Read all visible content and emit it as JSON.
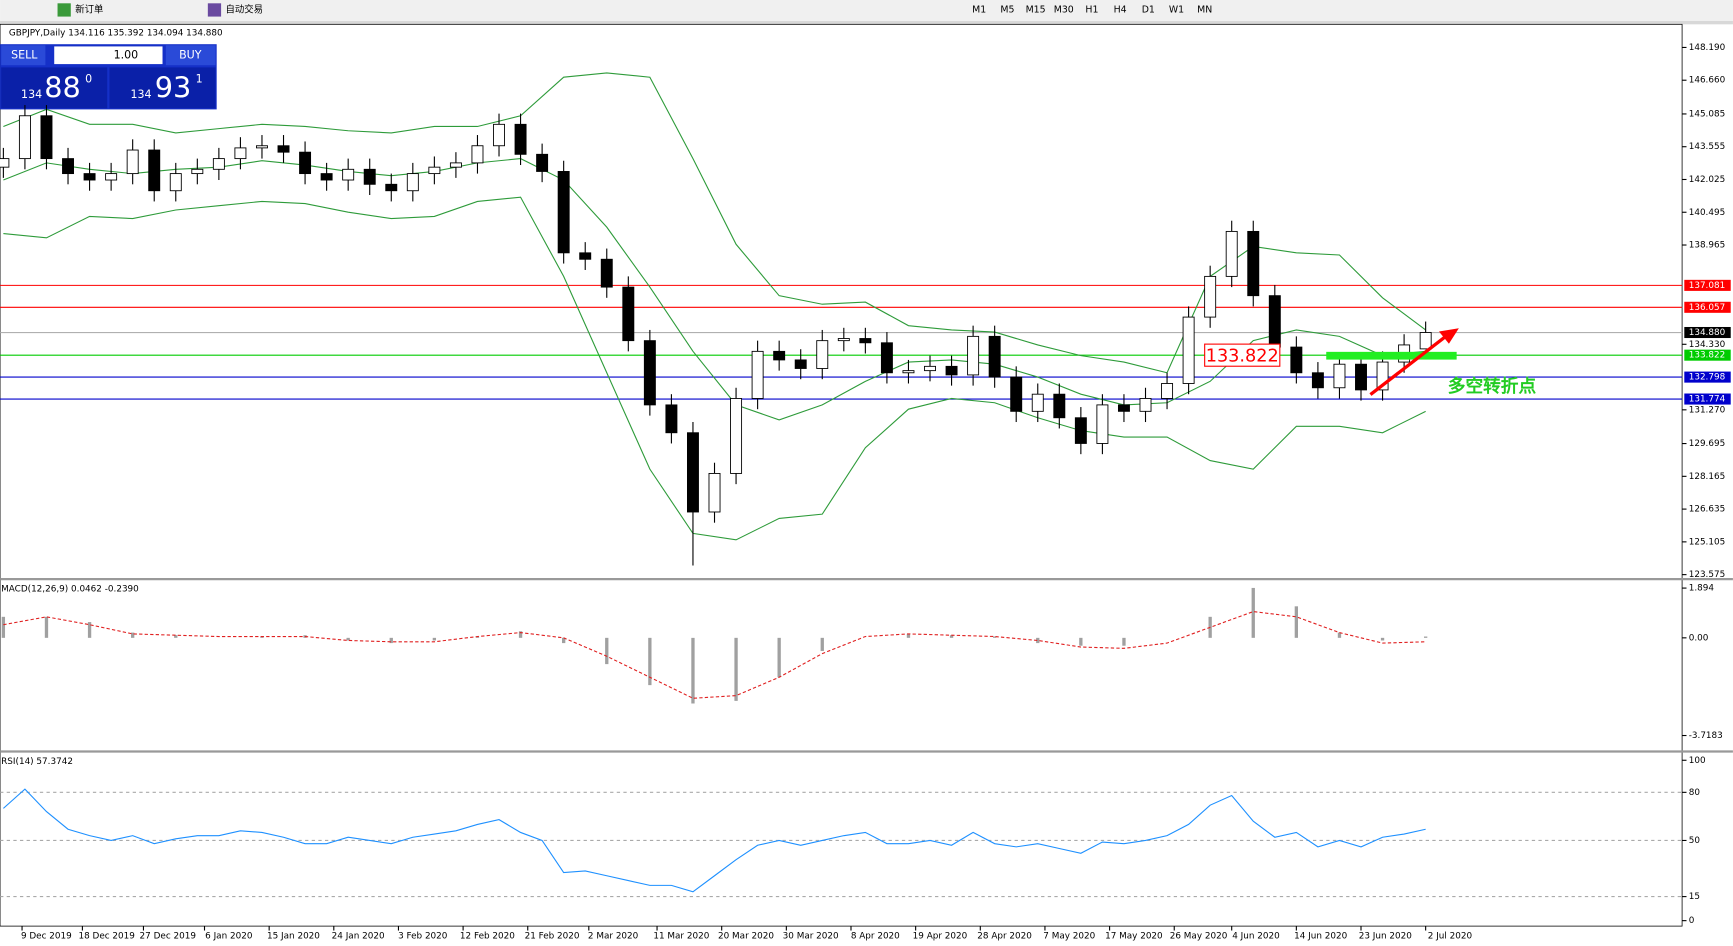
{
  "toolbar": {
    "buttons": [
      "新订单",
      "自动交易"
    ],
    "timeframes": [
      "M1",
      "M5",
      "M15",
      "M30",
      "H1",
      "H4",
      "D1",
      "W1",
      "MN"
    ]
  },
  "trade_panel": {
    "sell": "SELL",
    "buy": "BUY",
    "lot": "1.00",
    "sell_price": {
      "prefix": "134",
      "big": "88",
      "small": "0"
    },
    "buy_price": {
      "prefix": "134",
      "big": "93",
      "small": "1"
    }
  },
  "chart_data": [
    {
      "type": "candlestick",
      "title": "GBPJPY,Daily  134.116 135.392 134.094 134.880",
      "x": [
        0,
        3,
        6,
        9,
        12,
        15,
        18,
        21,
        24,
        27,
        30,
        33,
        36,
        39,
        42,
        45,
        48,
        51,
        54,
        57,
        60,
        63,
        66,
        69,
        72,
        75,
        78,
        81,
        84,
        87,
        90,
        93,
        96,
        99,
        102,
        105,
        108,
        111,
        114,
        117,
        120,
        123,
        126,
        129,
        132,
        135,
        138,
        141,
        144,
        147,
        150,
        153,
        156,
        159,
        162,
        165,
        168,
        171,
        174,
        177,
        180,
        183,
        186,
        189,
        192,
        195,
        198
      ],
      "open": [
        142.6,
        143.0,
        145.0,
        143.0,
        142.3,
        142.0,
        142.3,
        143.4,
        141.5,
        142.3,
        142.5,
        143.0,
        143.5,
        143.6,
        143.3,
        142.3,
        142.0,
        142.5,
        141.8,
        141.5,
        142.3,
        142.6,
        142.8,
        143.6,
        144.6,
        143.2,
        142.4,
        138.6,
        138.3,
        137.0,
        134.5,
        131.5,
        130.2,
        126.5,
        128.3,
        131.8,
        134.0,
        133.6,
        133.2,
        134.5,
        134.6,
        134.4,
        133.0,
        133.1,
        133.3,
        132.9,
        134.7,
        132.8,
        131.2,
        132.0,
        130.9,
        129.7,
        131.5,
        131.2,
        131.8,
        132.5,
        135.6,
        137.5,
        139.6,
        136.6,
        134.2,
        133.0,
        132.3,
        133.4,
        132.2,
        133.5,
        134.116
      ],
      "high": [
        143.5,
        145.5,
        145.5,
        143.5,
        142.8,
        142.8,
        143.9,
        143.9,
        142.8,
        143.0,
        143.5,
        144.0,
        144.1,
        144.1,
        143.8,
        142.8,
        143.0,
        143.0,
        142.3,
        142.8,
        143.1,
        143.3,
        144.1,
        145.1,
        145.1,
        143.7,
        142.9,
        139.1,
        138.8,
        137.5,
        135.0,
        132.0,
        130.7,
        128.8,
        132.3,
        134.5,
        134.5,
        134.1,
        135.0,
        135.1,
        135.1,
        134.9,
        133.6,
        133.8,
        133.8,
        135.2,
        135.2,
        133.3,
        132.5,
        132.5,
        131.4,
        132.0,
        132.0,
        132.3,
        133.0,
        136.1,
        138.0,
        140.1,
        140.1,
        137.1,
        134.7,
        133.5,
        133.9,
        133.9,
        134.0,
        134.8,
        135.392
      ],
      "low": [
        142.1,
        142.5,
        142.5,
        141.8,
        141.5,
        141.5,
        141.8,
        141.0,
        141.0,
        141.8,
        142.0,
        142.5,
        143.0,
        142.8,
        141.8,
        141.5,
        141.5,
        141.3,
        141.0,
        141.0,
        141.8,
        142.1,
        142.3,
        143.1,
        142.7,
        141.9,
        138.1,
        137.8,
        136.5,
        134.0,
        131.0,
        129.7,
        124.0,
        126.0,
        127.8,
        131.3,
        133.1,
        132.7,
        132.7,
        134.0,
        133.9,
        132.5,
        132.5,
        132.6,
        132.4,
        132.4,
        132.3,
        130.7,
        130.7,
        130.4,
        129.2,
        129.2,
        130.7,
        130.7,
        131.3,
        132.0,
        135.1,
        137.0,
        136.1,
        133.7,
        132.5,
        131.8,
        131.8,
        131.7,
        131.7,
        133.0,
        134.094
      ],
      "close": [
        143.0,
        145.0,
        143.0,
        142.3,
        142.0,
        142.3,
        143.4,
        141.5,
        142.3,
        142.5,
        143.0,
        143.5,
        143.6,
        143.3,
        142.3,
        142.0,
        142.5,
        141.8,
        141.5,
        142.3,
        142.6,
        142.8,
        143.6,
        144.6,
        143.2,
        142.4,
        138.6,
        138.3,
        137.0,
        134.5,
        131.5,
        130.2,
        126.5,
        128.3,
        131.8,
        134.0,
        133.6,
        133.2,
        134.5,
        134.6,
        134.4,
        133.0,
        133.1,
        133.3,
        132.9,
        134.7,
        132.8,
        131.2,
        132.0,
        130.9,
        129.7,
        131.5,
        131.2,
        131.8,
        132.5,
        135.6,
        137.5,
        139.6,
        136.6,
        134.2,
        133.0,
        132.3,
        133.4,
        132.2,
        133.5,
        134.3,
        134.88
      ],
      "series": [
        {
          "name": "upper",
          "color": "#2e9b3a",
          "x": [
            0,
            6,
            12,
            18,
            24,
            30,
            36,
            42,
            48,
            54,
            60,
            66,
            72,
            78,
            84,
            90,
            96,
            102,
            108,
            114,
            120,
            126,
            132,
            138,
            144,
            150,
            156,
            162,
            168,
            174,
            180,
            186,
            192,
            198
          ],
          "values": [
            144.5,
            145.3,
            144.6,
            144.6,
            144.2,
            144.4,
            144.6,
            144.5,
            144.3,
            144.2,
            144.5,
            144.5,
            145.0,
            146.8,
            147.0,
            146.8,
            143.0,
            139.0,
            136.6,
            136.2,
            136.3,
            135.2,
            135.0,
            134.9,
            134.3,
            133.8,
            133.5,
            133.0,
            137.5,
            138.9,
            138.6,
            138.5,
            136.5,
            135.0
          ]
        },
        {
          "name": "middle",
          "color": "#2e9b3a",
          "x": [
            0,
            6,
            12,
            18,
            24,
            30,
            36,
            42,
            48,
            54,
            60,
            66,
            72,
            78,
            84,
            90,
            96,
            102,
            108,
            114,
            120,
            126,
            132,
            138,
            144,
            150,
            156,
            162,
            168,
            174,
            180,
            186,
            192,
            198
          ],
          "values": [
            142.0,
            142.8,
            142.5,
            142.3,
            142.5,
            142.6,
            142.9,
            142.7,
            142.4,
            142.2,
            142.4,
            142.8,
            143.0,
            142.0,
            139.8,
            137.0,
            134.0,
            131.5,
            130.8,
            131.5,
            132.6,
            133.5,
            133.6,
            133.4,
            132.8,
            132.0,
            131.5,
            131.6,
            132.6,
            134.5,
            135.0,
            134.7,
            133.8,
            134.0
          ]
        },
        {
          "name": "lower",
          "color": "#2e9b3a",
          "x": [
            0,
            6,
            12,
            18,
            24,
            30,
            36,
            42,
            48,
            54,
            60,
            66,
            72,
            78,
            84,
            90,
            96,
            102,
            108,
            114,
            120,
            126,
            132,
            138,
            144,
            150,
            156,
            162,
            168,
            174,
            180,
            186,
            192,
            198
          ],
          "values": [
            139.5,
            139.3,
            140.3,
            140.2,
            140.6,
            140.8,
            141.0,
            140.9,
            140.5,
            140.2,
            140.3,
            141.0,
            141.2,
            137.5,
            133.0,
            128.5,
            125.5,
            125.2,
            126.2,
            126.4,
            129.5,
            131.3,
            131.8,
            131.6,
            130.9,
            130.3,
            130.0,
            130.0,
            128.9,
            128.5,
            130.5,
            130.5,
            130.2,
            131.2
          ]
        }
      ],
      "levels": [
        {
          "value": 137.081,
          "label": "137.081",
          "color": "#ff0000"
        },
        {
          "value": 136.057,
          "label": "136.057",
          "color": "#ff0000"
        },
        {
          "value": 134.88,
          "label": "134.880",
          "color": "#000000"
        },
        {
          "value": 133.822,
          "label": "133.822",
          "color": "#00cc00"
        },
        {
          "value": 132.798,
          "label": "132.798",
          "color": "#0000cc"
        },
        {
          "value": 131.774,
          "label": "131.774",
          "color": "#0000cc"
        }
      ],
      "annotations": [
        "133.822",
        "多空转折点"
      ],
      "xlim": [
        -0.46,
        233.7
      ],
      "ylim": [
        123.47,
        149.27
      ],
      "yticks": [
        {
          "value": 148.19,
          "label": "148.190"
        },
        {
          "value": 146.66,
          "label": "146.660"
        },
        145.085,
        143.555,
        142.025,
        140.495,
        138.965,
        {
          "value": 134.33,
          "label": "134.330"
        },
        {
          "value": 131.27,
          "label": "131.270"
        },
        129.695,
        128.165,
        126.635,
        125.105,
        123.575
      ]
    },
    {
      "type": "macd",
      "title": "MACD(12,26,9) 0.0462 -0.2390",
      "x": [
        0,
        6,
        12,
        18,
        24,
        30,
        36,
        42,
        48,
        54,
        60,
        66,
        72,
        78,
        84,
        90,
        96,
        102,
        108,
        114,
        120,
        126,
        132,
        138,
        144,
        150,
        156,
        162,
        168,
        174,
        180,
        186,
        192,
        198
      ],
      "series": [
        {
          "name": "MACD",
          "color": "#a0a0a0",
          "values": [
            0.8,
            0.8,
            0.6,
            0.2,
            0.1,
            0,
            0.05,
            0.1,
            -0.1,
            -0.2,
            -0.1,
            0.05,
            0.25,
            -0.2,
            -1.0,
            -1.8,
            -2.5,
            -2.4,
            -1.5,
            -0.5,
            0,
            0.15,
            0.1,
            0.05,
            -0.2,
            -0.3,
            -0.3,
            0,
            0.8,
            1.9,
            1.2,
            0.2,
            -0.1,
            0.05
          ]
        },
        {
          "name": "Signal",
          "color": "#e02020",
          "values": [
            0.5,
            0.8,
            0.5,
            0.15,
            0.1,
            0.05,
            0.05,
            0.05,
            -0.1,
            -0.15,
            -0.15,
            0.05,
            0.2,
            0.0,
            -0.7,
            -1.5,
            -2.3,
            -2.2,
            -1.5,
            -0.6,
            0.05,
            0.15,
            0.1,
            0.05,
            -0.1,
            -0.35,
            -0.4,
            -0.2,
            0.4,
            1.0,
            0.8,
            0.2,
            -0.2,
            -0.15
          ]
        }
      ],
      "xlim": [
        -0.46,
        233.7
      ],
      "ylim": [
        -4.2,
        2.11
      ],
      "yticks": [
        1.894,
        {
          "value": 0,
          "label": "0.00"
        },
        -3.7183
      ]
    },
    {
      "type": "rsi",
      "title": "RSI(14) 57.3742",
      "color": "#1e90ff",
      "x": [
        0,
        3,
        6,
        9,
        12,
        15,
        18,
        21,
        24,
        27,
        30,
        33,
        36,
        39,
        42,
        45,
        48,
        51,
        54,
        57,
        60,
        63,
        66,
        69,
        72,
        75,
        78,
        81,
        84,
        87,
        90,
        93,
        96,
        99,
        102,
        105,
        108,
        111,
        114,
        117,
        120,
        123,
        126,
        129,
        132,
        135,
        138,
        141,
        144,
        147,
        150,
        153,
        156,
        159,
        162,
        165,
        168,
        171,
        174,
        177,
        180,
        183,
        186,
        189,
        192,
        195,
        198
      ],
      "values": [
        70,
        82,
        68,
        57,
        53,
        50,
        53,
        48,
        51,
        53,
        53,
        56,
        55,
        52,
        48,
        48,
        52,
        50,
        48,
        52,
        54,
        56,
        60,
        63,
        55,
        50,
        30,
        31,
        28,
        25,
        22,
        22,
        18,
        28,
        38,
        47,
        50,
        47,
        50,
        53,
        55,
        48,
        48,
        50,
        47,
        55,
        48,
        46,
        48,
        45,
        42,
        49,
        48,
        50,
        53,
        60,
        72,
        78,
        62,
        52,
        55,
        46,
        50,
        46,
        52,
        54,
        57
      ],
      "grid_levels": [
        80,
        50,
        15
      ],
      "xlim": [
        -0.46,
        233.7
      ],
      "ylim": [
        -3.4,
        103.4
      ],
      "yticks": [
        100,
        80,
        50,
        15,
        0
      ],
      "xticks": [
        {
          "value": 2.6,
          "label": "9 Dec 2019"
        },
        {
          "value": 11,
          "label": "18 Dec 2019"
        },
        {
          "value": 19.5,
          "label": "27 Dec 2019"
        },
        {
          "value": 28,
          "label": "6 Jan 2020"
        },
        {
          "value": 37,
          "label": "15 Jan 2020"
        },
        {
          "value": 46,
          "label": "24 Jan 2020"
        },
        {
          "value": 55,
          "label": "3 Feb 2020"
        },
        {
          "value": 64,
          "label": "12 Feb 2020"
        },
        {
          "value": 73,
          "label": "21 Feb 2020"
        },
        {
          "value": 81.5,
          "label": "2 Mar 2020"
        },
        {
          "value": 91,
          "label": "11 Mar 2020"
        },
        {
          "value": 100,
          "label": "20 Mar 2020"
        },
        {
          "value": 109,
          "label": "30 Mar 2020"
        },
        {
          "value": 118,
          "label": "8 Apr 2020"
        },
        {
          "value": 127,
          "label": "19 Apr 2020"
        },
        {
          "value": 136,
          "label": "28 Apr 2020"
        },
        {
          "value": 145,
          "label": "7 May 2020"
        },
        {
          "value": 154,
          "label": "17 May 2020"
        },
        {
          "value": 163,
          "label": "26 May 2020"
        },
        {
          "value": 171,
          "label": "4 Jun 2020"
        },
        {
          "value": 180,
          "label": "14 Jun 2020"
        },
        {
          "value": 189,
          "label": "23 Jun 2020"
        },
        {
          "value": 198,
          "label": "2 Jul 2020"
        }
      ]
    }
  ]
}
